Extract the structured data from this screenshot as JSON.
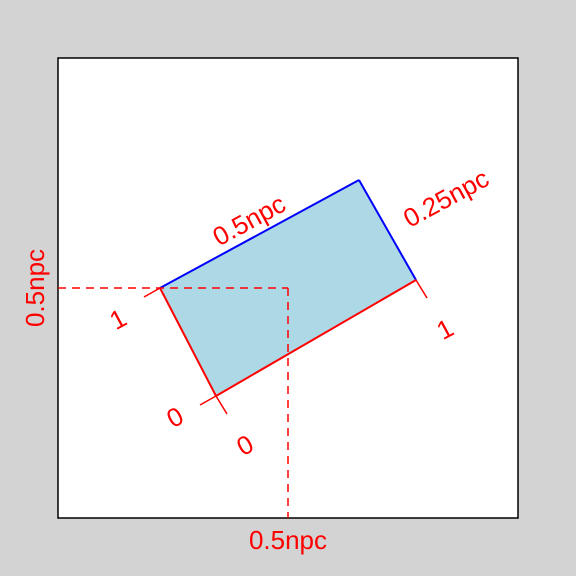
{
  "colors": {
    "background": "#d3d3d3",
    "panel_fill": "#ffffff",
    "panel_border": "#000000",
    "rect_fill": "#add8e6",
    "rect_edge_top": "#0000ff",
    "annotation": "#ff0000"
  },
  "labels": {
    "width": "0.5npc",
    "height": "0.25npc",
    "x_position": "0.5npc",
    "y_position": "0.5npc",
    "x_axis_start": "0",
    "x_axis_end": "1",
    "y_axis_start": "0",
    "y_axis_end": "1"
  }
}
